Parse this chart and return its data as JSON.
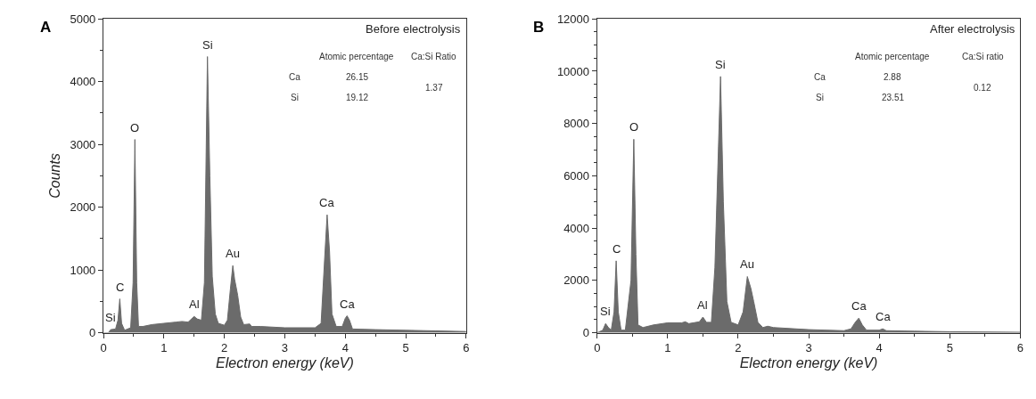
{
  "chart_data": [
    {
      "type": "area",
      "xlabel": "Electron energy (keV)",
      "ylabel": "Counts",
      "xlim": [
        0,
        6
      ],
      "xticks": [
        0,
        1,
        2,
        3,
        4,
        5,
        6
      ],
      "ylim": [
        0,
        5000
      ],
      "yticks": [
        0,
        1000,
        2000,
        3000,
        4000,
        5000
      ],
      "x": [
        0,
        0.08,
        0.12,
        0.2,
        0.24,
        0.27,
        0.3,
        0.35,
        0.45,
        0.49,
        0.52,
        0.55,
        0.58,
        0.65,
        0.8,
        1.0,
        1.2,
        1.3,
        1.4,
        1.5,
        1.55,
        1.62,
        1.67,
        1.72,
        1.76,
        1.8,
        1.85,
        1.9,
        2.0,
        2.05,
        2.1,
        2.14,
        2.17,
        2.22,
        2.27,
        2.32,
        2.42,
        2.45,
        2.6,
        3.0,
        3.5,
        3.6,
        3.66,
        3.7,
        3.74,
        3.78,
        3.85,
        3.95,
        4.0,
        4.03,
        4.07,
        4.12,
        4.5,
        5.0,
        5.5,
        6.0
      ],
      "series": [
        {
          "color": "#6b6b6b",
          "values": [
            0,
            0,
            50,
            60,
            200,
            540,
            150,
            40,
            80,
            800,
            3080,
            800,
            100,
            100,
            130,
            150,
            170,
            180,
            170,
            260,
            220,
            200,
            800,
            4400,
            2500,
            900,
            300,
            150,
            120,
            200,
            700,
            1070,
            850,
            600,
            250,
            130,
            140,
            100,
            100,
            80,
            80,
            150,
            1200,
            1880,
            1300,
            300,
            100,
            100,
            230,
            270,
            200,
            60,
            50,
            40,
            30,
            20
          ]
        }
      ],
      "annotations": [
        "A",
        "Before electrolysis",
        "Atomic percentage",
        "Ca:Si Ratio",
        "Ca",
        "26.15",
        "Si",
        "19.12",
        "1.37",
        {
          "text": "Si",
          "x": 0.12,
          "y": 50
        },
        {
          "text": "C",
          "x": 0.27,
          "y": 540
        },
        {
          "text": "O",
          "x": 0.52,
          "y": 3080
        },
        {
          "text": "Si",
          "x": 1.72,
          "y": 4400
        },
        {
          "text": "Al",
          "x": 1.5,
          "y": 260
        },
        {
          "text": "Au",
          "x": 2.14,
          "y": 1070
        },
        {
          "text": "Ca",
          "x": 3.7,
          "y": 1880
        },
        {
          "text": "Ca",
          "x": 4.03,
          "y": 270
        }
      ]
    },
    {
      "type": "area",
      "xlabel": "Electron energy (keV)",
      "xlim": [
        0,
        6
      ],
      "xticks": [
        0,
        1,
        2,
        3,
        4,
        5,
        6
      ],
      "ylim": [
        0,
        12000
      ],
      "yticks": [
        0,
        2000,
        4000,
        6000,
        8000,
        10000,
        12000
      ],
      "x": [
        0,
        0.08,
        0.12,
        0.16,
        0.2,
        0.24,
        0.27,
        0.3,
        0.34,
        0.4,
        0.48,
        0.52,
        0.55,
        0.58,
        0.65,
        0.8,
        1.0,
        1.2,
        1.25,
        1.3,
        1.45,
        1.5,
        1.55,
        1.62,
        1.67,
        1.75,
        1.79,
        1.84,
        1.9,
        2.0,
        2.07,
        2.13,
        2.18,
        2.22,
        2.28,
        2.35,
        2.42,
        2.5,
        3.0,
        3.5,
        3.6,
        3.66,
        3.71,
        3.76,
        3.82,
        4.0,
        4.05,
        4.1,
        4.5,
        5.0,
        6.0
      ],
      "series": [
        {
          "color": "#6b6b6b",
          "values": [
            0,
            100,
            350,
            200,
            100,
            800,
            2750,
            800,
            100,
            100,
            2000,
            7400,
            3000,
            300,
            200,
            300,
            380,
            380,
            420,
            350,
            420,
            600,
            400,
            400,
            2500,
            9800,
            5000,
            1200,
            400,
            300,
            800,
            2150,
            1700,
            1200,
            400,
            200,
            250,
            200,
            120,
            80,
            150,
            400,
            560,
            300,
            100,
            100,
            150,
            80,
            60,
            40,
            20
          ]
        }
      ],
      "annotations": [
        "B",
        "After electrolysis",
        "Atomic percentage",
        "Ca:Si ratio",
        "Ca",
        "2.88",
        "Si",
        "23.51",
        "0.12",
        {
          "text": "Si",
          "x": 0.12,
          "y": 350
        },
        {
          "text": "C",
          "x": 0.27,
          "y": 2750
        },
        {
          "text": "O",
          "x": 0.52,
          "y": 7400
        },
        {
          "text": "Si",
          "x": 1.75,
          "y": 9800
        },
        {
          "text": "Al",
          "x": 1.5,
          "y": 600
        },
        {
          "text": "Au",
          "x": 2.13,
          "y": 2150
        },
        {
          "text": "Ca",
          "x": 3.71,
          "y": 560
        },
        {
          "text": "Ca",
          "x": 4.05,
          "y": 150
        }
      ]
    }
  ]
}
